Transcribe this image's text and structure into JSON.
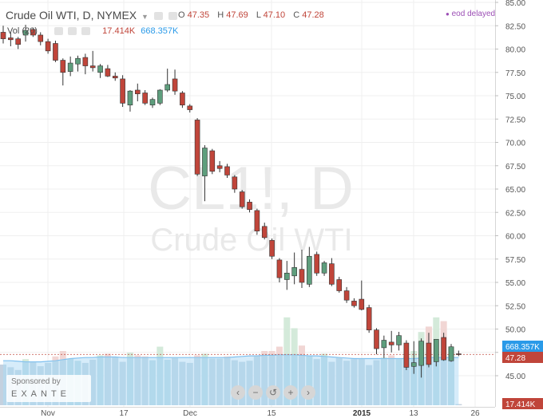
{
  "header": {
    "title": "Crude Oil WTI, D, NYMEX",
    "ohlc": {
      "o_label": "O",
      "o": "47.35",
      "h_label": "H",
      "h": "47.69",
      "l_label": "L",
      "l": "47.10",
      "c_label": "C",
      "c": "47.28"
    },
    "eod": "eod delayed",
    "vol_label": "Vol (20)",
    "vol_value": "17.414K",
    "vol_ma": "668.357K"
  },
  "watermark": {
    "symbol": "CL1!, D",
    "name": "Crude Oil WTI"
  },
  "sponsor": {
    "label": "Sponsored by",
    "brand": "EXANTE"
  },
  "nav_buttons": [
    "‹",
    "−",
    "↺",
    "+",
    "›"
  ],
  "colors": {
    "up": "#5e9e7d",
    "down": "#c0453a",
    "volume_ma_fill": "#c8e5f8",
    "volume_ma_line": "#7fc0ef",
    "accent": "#2a9ae8"
  },
  "chart_data": {
    "type": "candlestick",
    "title": "Crude Oil WTI, D, NYMEX",
    "price_axis": {
      "ticks": [
        "45.00",
        "47.50",
        "50.00",
        "52.50",
        "55.00",
        "57.50",
        "60.00",
        "62.50",
        "65.00",
        "67.50",
        "70.00",
        "72.50",
        "75.00",
        "77.50",
        "80.00",
        "82.50",
        "85.00"
      ],
      "range": [
        43.5,
        85.3
      ]
    },
    "price_labels": {
      "volume_ma": "668.357K",
      "last": "47.28",
      "volume": "17.414K"
    },
    "time_axis": {
      "ticks": [
        "Nov",
        "17",
        "Dec",
        "15",
        "2015",
        "13",
        "26"
      ]
    },
    "candles": [
      {
        "o": 81.8,
        "h": 82.5,
        "l": 80.6,
        "c": 81.1
      },
      {
        "o": 81.2,
        "h": 81.8,
        "l": 80.3,
        "c": 81.0
      },
      {
        "o": 81.1,
        "h": 81.3,
        "l": 80.0,
        "c": 80.5
      },
      {
        "o": 81.5,
        "h": 82.6,
        "l": 80.8,
        "c": 82.0
      },
      {
        "o": 82.1,
        "h": 82.3,
        "l": 81.3,
        "c": 81.5
      },
      {
        "o": 81.5,
        "h": 81.8,
        "l": 80.4,
        "c": 80.8
      },
      {
        "o": 80.8,
        "h": 81.1,
        "l": 79.5,
        "c": 79.8
      },
      {
        "o": 80.6,
        "h": 80.9,
        "l": 78.6,
        "c": 78.8
      },
      {
        "o": 78.8,
        "h": 79.0,
        "l": 76.1,
        "c": 77.5
      },
      {
        "o": 77.6,
        "h": 79.2,
        "l": 77.1,
        "c": 78.5
      },
      {
        "o": 78.4,
        "h": 79.3,
        "l": 77.6,
        "c": 79.0
      },
      {
        "o": 79.1,
        "h": 79.5,
        "l": 77.3,
        "c": 78.2
      },
      {
        "o": 78.2,
        "h": 79.8,
        "l": 77.6,
        "c": 78.0
      },
      {
        "o": 77.5,
        "h": 78.4,
        "l": 76.9,
        "c": 78.2
      },
      {
        "o": 77.9,
        "h": 78.3,
        "l": 77.0,
        "c": 77.1
      },
      {
        "o": 77.1,
        "h": 77.5,
        "l": 76.6,
        "c": 76.9
      },
      {
        "o": 76.8,
        "h": 77.2,
        "l": 73.8,
        "c": 74.2
      },
      {
        "o": 74.0,
        "h": 75.6,
        "l": 73.3,
        "c": 75.5
      },
      {
        "o": 75.6,
        "h": 76.3,
        "l": 74.4,
        "c": 75.2
      },
      {
        "o": 75.3,
        "h": 75.6,
        "l": 74.0,
        "c": 74.2
      },
      {
        "o": 74.0,
        "h": 74.8,
        "l": 73.7,
        "c": 74.6
      },
      {
        "o": 74.2,
        "h": 75.7,
        "l": 74.0,
        "c": 75.6
      },
      {
        "o": 75.6,
        "h": 77.9,
        "l": 75.4,
        "c": 76.2
      },
      {
        "o": 76.8,
        "h": 77.8,
        "l": 75.1,
        "c": 75.5
      },
      {
        "o": 75.3,
        "h": 75.5,
        "l": 73.7,
        "c": 74.0
      },
      {
        "o": 73.9,
        "h": 74.1,
        "l": 73.2,
        "c": 73.5
      },
      {
        "o": 72.4,
        "h": 72.6,
        "l": 66.4,
        "c": 66.6
      },
      {
        "o": 66.4,
        "h": 69.7,
        "l": 63.7,
        "c": 69.4
      },
      {
        "o": 69.1,
        "h": 69.3,
        "l": 66.6,
        "c": 66.9
      },
      {
        "o": 67.5,
        "h": 68.0,
        "l": 66.8,
        "c": 67.2
      },
      {
        "o": 67.4,
        "h": 67.7,
        "l": 66.2,
        "c": 66.5
      },
      {
        "o": 66.3,
        "h": 66.5,
        "l": 64.6,
        "c": 65.0
      },
      {
        "o": 64.7,
        "h": 64.9,
        "l": 62.9,
        "c": 63.1
      },
      {
        "o": 63.6,
        "h": 63.9,
        "l": 62.5,
        "c": 62.8
      },
      {
        "o": 62.7,
        "h": 62.9,
        "l": 60.1,
        "c": 60.5
      },
      {
        "o": 61.0,
        "h": 61.4,
        "l": 59.6,
        "c": 59.8
      },
      {
        "o": 59.5,
        "h": 59.7,
        "l": 57.5,
        "c": 57.8
      },
      {
        "o": 57.4,
        "h": 57.6,
        "l": 55.0,
        "c": 55.5
      },
      {
        "o": 55.3,
        "h": 57.3,
        "l": 54.2,
        "c": 56.0
      },
      {
        "o": 55.7,
        "h": 58.2,
        "l": 54.8,
        "c": 56.6
      },
      {
        "o": 56.4,
        "h": 58.5,
        "l": 54.4,
        "c": 55.0
      },
      {
        "o": 54.8,
        "h": 58.8,
        "l": 54.5,
        "c": 57.8
      },
      {
        "o": 58.0,
        "h": 58.3,
        "l": 55.7,
        "c": 56.0
      },
      {
        "o": 56.0,
        "h": 57.3,
        "l": 55.7,
        "c": 57.1
      },
      {
        "o": 57.0,
        "h": 57.6,
        "l": 54.6,
        "c": 54.8
      },
      {
        "o": 55.3,
        "h": 55.6,
        "l": 53.9,
        "c": 54.1
      },
      {
        "o": 54.1,
        "h": 54.5,
        "l": 52.8,
        "c": 53.1
      },
      {
        "o": 53.0,
        "h": 53.3,
        "l": 52.3,
        "c": 52.5
      },
      {
        "o": 53.2,
        "h": 55.2,
        "l": 52.0,
        "c": 52.1
      },
      {
        "o": 52.3,
        "h": 52.6,
        "l": 49.6,
        "c": 49.9
      },
      {
        "o": 49.9,
        "h": 50.1,
        "l": 47.3,
        "c": 47.9
      },
      {
        "o": 48.0,
        "h": 49.3,
        "l": 46.9,
        "c": 48.8
      },
      {
        "o": 48.6,
        "h": 49.8,
        "l": 47.5,
        "c": 48.3
      },
      {
        "o": 48.3,
        "h": 49.7,
        "l": 47.7,
        "c": 49.3
      },
      {
        "o": 48.5,
        "h": 48.8,
        "l": 45.6,
        "c": 45.9
      },
      {
        "o": 46.0,
        "h": 48.7,
        "l": 45.2,
        "c": 46.4
      },
      {
        "o": 46.1,
        "h": 49.0,
        "l": 44.8,
        "c": 48.7
      },
      {
        "o": 48.5,
        "h": 49.6,
        "l": 45.9,
        "c": 46.2
      },
      {
        "o": 46.5,
        "h": 48.9,
        "l": 46.0,
        "c": 48.9
      },
      {
        "o": 49.1,
        "h": 49.6,
        "l": 46.6,
        "c": 46.7
      },
      {
        "o": 46.6,
        "h": 48.4,
        "l": 46.5,
        "c": 48.1
      },
      {
        "o": 47.35,
        "h": 47.69,
        "l": 47.1,
        "c": 47.28
      }
    ],
    "volume_bars": [
      0.75,
      0.7,
      0.65,
      0.85,
      0.8,
      0.72,
      0.78,
      0.9,
      1.0,
      0.86,
      0.82,
      0.78,
      0.84,
      0.92,
      0.95,
      0.88,
      0.8,
      0.97,
      0.92,
      0.9,
      0.83,
      1.08,
      0.84,
      0.88,
      0.8,
      0.78,
      0.92,
      0.95,
      0.86,
      0.86,
      0.9,
      0.83,
      0.8,
      0.82,
      0.92,
      1.0,
      1.0,
      1.08,
      1.62,
      1.42,
      1.1,
      0.9,
      0.85,
      0.95,
      0.8,
      0.88,
      0.82,
      0.85,
      0.86,
      0.74,
      0.83,
      0.88,
      0.92,
      0.86,
      0.9,
      1.0,
      1.35,
      1.45,
      1.62,
      1.55,
      1.08,
      0.02
    ],
    "volume_ma": [
      0.82,
      0.82,
      0.81,
      0.8,
      0.8,
      0.8,
      0.81,
      0.82,
      0.84,
      0.86,
      0.87,
      0.88,
      0.88,
      0.89,
      0.89,
      0.89,
      0.88,
      0.88,
      0.88,
      0.88,
      0.88,
      0.88,
      0.88,
      0.88,
      0.88,
      0.88,
      0.88,
      0.88,
      0.88,
      0.88,
      0.88,
      0.89,
      0.9,
      0.91,
      0.91,
      0.92,
      0.92,
      0.93,
      0.93,
      0.93,
      0.92,
      0.91,
      0.91,
      0.9,
      0.89,
      0.88,
      0.87,
      0.86,
      0.86,
      0.86,
      0.86,
      0.86,
      0.86,
      0.86,
      0.86,
      0.86,
      0.87,
      0.88,
      0.88,
      0.88,
      0.88,
      0.88
    ]
  }
}
